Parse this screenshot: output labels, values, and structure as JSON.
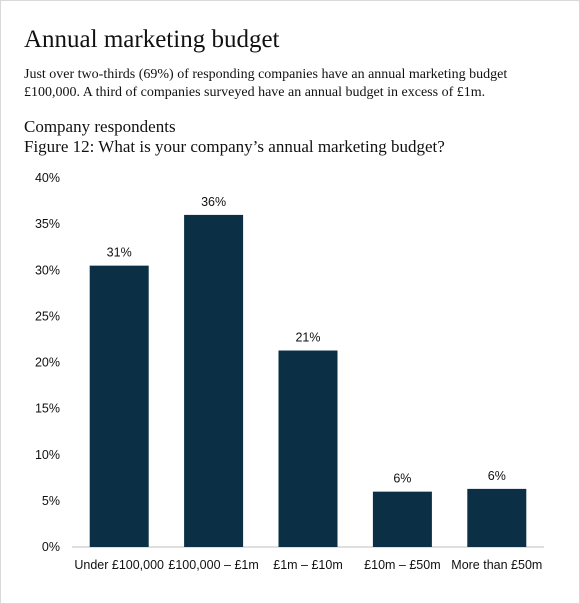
{
  "page": {
    "title": "Annual marketing budget",
    "intro": "Just over two-thirds (69%) of responding companies have an annual marketing budget £100,000. A third of companies surveyed have an annual budget in excess of £1m.",
    "subtitle": "Company respondents",
    "figure_title": "Figure 12: What is your company’s annual marketing budget?"
  },
  "chart_data": {
    "type": "bar",
    "categories": [
      "Under £100,000",
      "£100,000 – £1m",
      "£1m – £10m",
      "£10m – £50m",
      "More than £50m"
    ],
    "values": [
      31,
      36,
      21,
      6,
      6
    ],
    "value_labels": [
      "31%",
      "36%",
      "21%",
      "6%",
      "6%"
    ],
    "bar_values_exact": [
      30.5,
      36,
      21.3,
      6,
      6.3
    ],
    "ylim": [
      0,
      40
    ],
    "y_ticks": [
      0,
      5,
      10,
      15,
      20,
      25,
      30,
      35,
      40
    ],
    "y_tick_labels": [
      "0%",
      "5%",
      "10%",
      "15%",
      "20%",
      "25%",
      "30%",
      "35%",
      "40%"
    ],
    "xlabel": "",
    "ylabel": "",
    "grid": false,
    "bar_color": "#0b2f45"
  }
}
